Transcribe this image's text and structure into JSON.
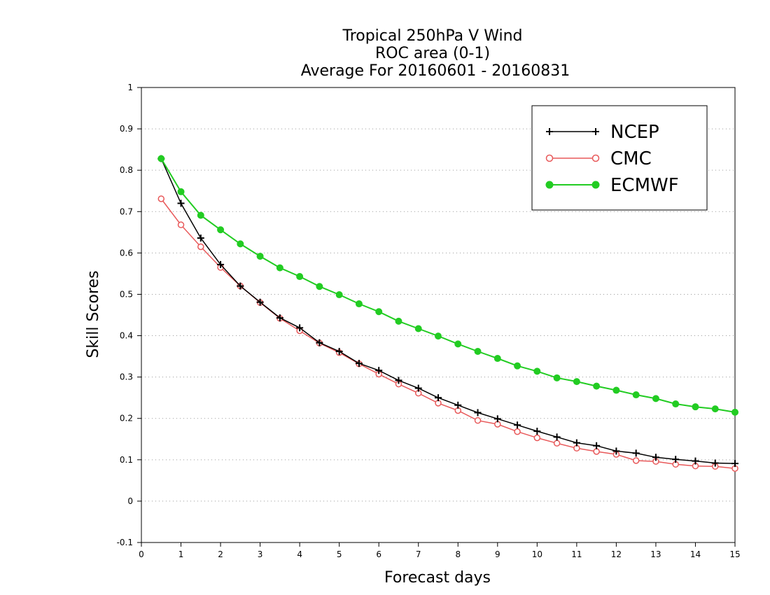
{
  "chart_data": {
    "type": "line",
    "title": [
      "Tropical 250hPa V Wind",
      "ROC area (0-1)",
      "Average For 20160601 - 20160831"
    ],
    "xlabel": "Forecast days",
    "ylabel": "Skill Scores",
    "xlim": [
      0,
      15
    ],
    "ylim": [
      -0.1,
      1
    ],
    "xticks": [
      0,
      1,
      2,
      3,
      4,
      5,
      6,
      7,
      8,
      9,
      10,
      11,
      12,
      13,
      14,
      15
    ],
    "yticks": [
      -0.1,
      0,
      0.1,
      0.2,
      0.3,
      0.4,
      0.5,
      0.6,
      0.7,
      0.8,
      0.9,
      1
    ],
    "ytick_labels": [
      "-0.1",
      "0",
      "0.1",
      "0.2",
      "0.3",
      "0.4",
      "0.5",
      "0.6",
      "0.7",
      "0.8",
      "0.9",
      "1"
    ],
    "grid": "horizontal dotted",
    "legend_position": "top-right",
    "x": [
      0.5,
      1,
      1.5,
      2,
      2.5,
      3,
      3.5,
      4,
      4.5,
      5,
      5.5,
      6,
      6.5,
      7,
      7.5,
      8,
      8.5,
      9,
      9.5,
      10,
      10.5,
      11,
      11.5,
      12,
      12.5,
      13,
      13.5,
      14,
      14.5,
      15
    ],
    "series": [
      {
        "name": "NCEP",
        "color": "#000000",
        "marker": "plus",
        "values": [
          0.828,
          0.72,
          0.636,
          0.572,
          0.52,
          0.481,
          0.443,
          0.419,
          0.383,
          0.362,
          0.333,
          0.316,
          0.292,
          0.273,
          0.25,
          0.232,
          0.214,
          0.199,
          0.184,
          0.169,
          0.155,
          0.141,
          0.134,
          0.121,
          0.116,
          0.106,
          0.101,
          0.097,
          0.092,
          0.091
        ]
      },
      {
        "name": "CMC",
        "color": "#e8595a",
        "marker": "open-circle",
        "values": [
          0.731,
          0.668,
          0.615,
          0.565,
          0.52,
          0.48,
          0.442,
          0.412,
          0.382,
          0.359,
          0.332,
          0.307,
          0.283,
          0.261,
          0.237,
          0.219,
          0.195,
          0.186,
          0.168,
          0.153,
          0.14,
          0.128,
          0.12,
          0.113,
          0.098,
          0.096,
          0.089,
          0.085,
          0.084,
          0.079
        ]
      },
      {
        "name": "ECMWF",
        "color": "#22cc22",
        "marker": "filled-circle",
        "values": [
          0.828,
          0.748,
          0.691,
          0.656,
          0.622,
          0.592,
          0.564,
          0.543,
          0.519,
          0.499,
          0.477,
          0.458,
          0.435,
          0.417,
          0.399,
          0.38,
          0.362,
          0.345,
          0.327,
          0.314,
          0.298,
          0.289,
          0.278,
          0.268,
          0.257,
          0.248,
          0.235,
          0.228,
          0.223,
          0.215
        ]
      }
    ]
  }
}
